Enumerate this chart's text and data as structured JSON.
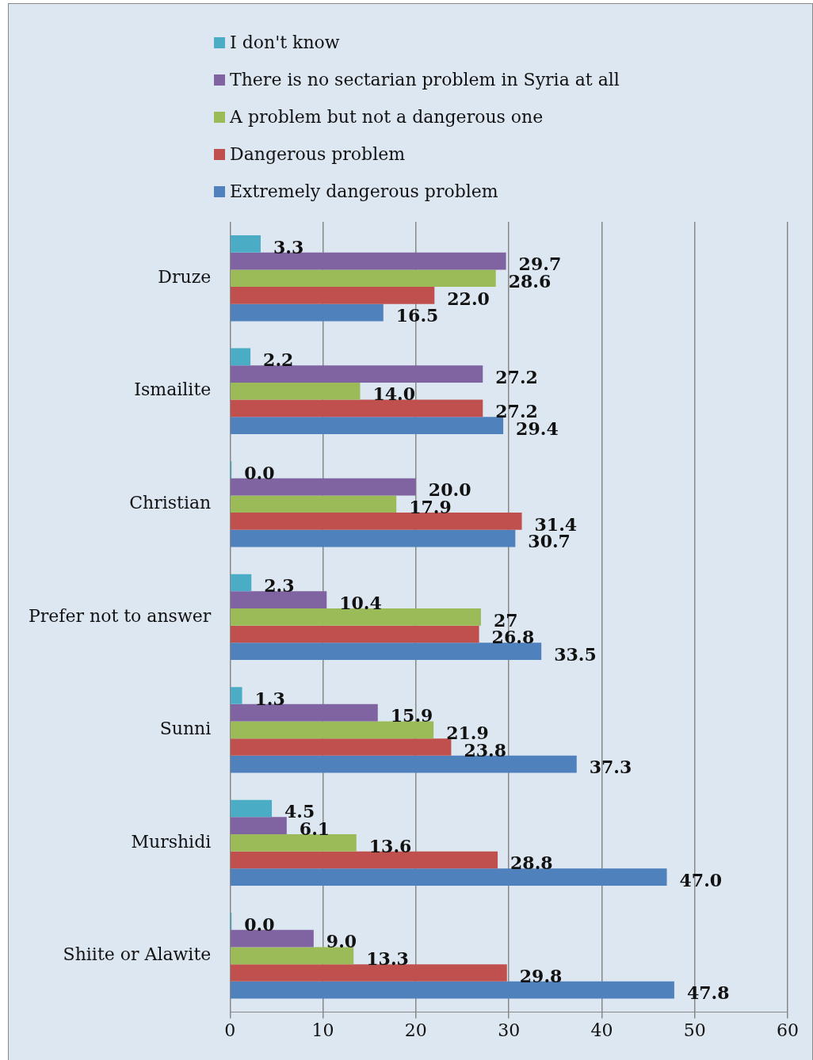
{
  "chart_data": {
    "type": "bar",
    "orientation": "horizontal",
    "categories": [
      "Druze",
      "Ismailite",
      "Christian",
      "Prefer not to answer",
      "Sunni",
      "Murshidi",
      "Shiite or Alawite"
    ],
    "series": [
      {
        "name": "I don't know",
        "color": "#4bacc6",
        "values": [
          3.3,
          2.2,
          0.0,
          2.3,
          1.3,
          4.5,
          0.0
        ],
        "value_labels": [
          "3.3",
          "2.2",
          "0.0",
          "2.3",
          "1.3",
          "4.5",
          "0.0"
        ]
      },
      {
        "name": "There is no sectarian problem in Syria at all",
        "color": "#8064a2",
        "values": [
          29.7,
          27.2,
          20.0,
          10.4,
          15.9,
          6.1,
          9.0
        ],
        "value_labels": [
          "29.7",
          "27.2",
          "20.0",
          "10.4",
          "15.9",
          "6.1",
          "9.0"
        ]
      },
      {
        "name": "A problem but not a dangerous one",
        "color": "#9bbb59",
        "values": [
          28.6,
          14.0,
          17.9,
          27,
          21.9,
          13.6,
          13.3
        ],
        "value_labels": [
          "28.6",
          "14.0",
          "17.9",
          "27",
          "21.9",
          "13.6",
          "13.3"
        ]
      },
      {
        "name": "Dangerous problem",
        "color": "#c0504d",
        "values": [
          22.0,
          27.2,
          31.4,
          26.8,
          23.8,
          28.8,
          29.8
        ],
        "value_labels": [
          "22.0",
          "27.2",
          "31.4",
          "26.8",
          "23.8",
          "28.8",
          "29.8"
        ]
      },
      {
        "name": "Extremely dangerous problem",
        "color": "#4f81bd",
        "values": [
          16.5,
          29.4,
          30.7,
          33.5,
          37.3,
          47.0,
          47.8
        ],
        "value_labels": [
          "16.5",
          "29.4",
          "30.7",
          "33.5",
          "37.3",
          "47.0",
          "47.8"
        ]
      }
    ],
    "xlim": [
      0,
      60
    ],
    "xticks": [
      0,
      10,
      20,
      30,
      40,
      50,
      60
    ],
    "grid": "x",
    "legend": "top left"
  }
}
